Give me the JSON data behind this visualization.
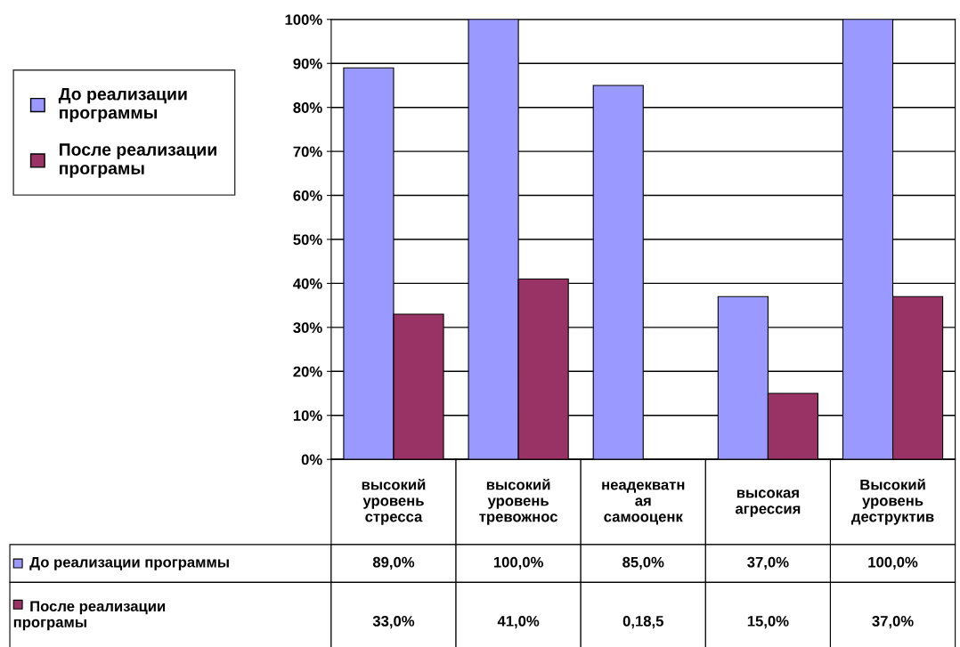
{
  "chart_data": {
    "type": "bar",
    "categories": [
      "высокий уровень стресса",
      "высокий уровень тревожнос",
      "неадекватн ая самооценк",
      "высокая агрессия",
      "Высокий уровень деструктив"
    ],
    "series": [
      {
        "name": "До реализации программы",
        "color": "#9999ff",
        "values": [
          89,
          100,
          85,
          37,
          100
        ],
        "value_labels": [
          "89,0%",
          "100,0%",
          "85,0%",
          "37,0%",
          "100,0%"
        ]
      },
      {
        "name": "После реализации програмы",
        "color": "#993366",
        "values": [
          33,
          41,
          null,
          15,
          37
        ],
        "value_labels": [
          "33,0%",
          "41,0%",
          "0,18,5",
          "15,0%",
          "37,0%"
        ]
      }
    ],
    "ylim": [
      0,
      100
    ],
    "yticks": [
      {
        "value": 0,
        "label": "0%"
      },
      {
        "value": 10,
        "label": "10%"
      },
      {
        "value": 20,
        "label": "20%"
      },
      {
        "value": 30,
        "label": "30%"
      },
      {
        "value": 40,
        "label": "40%"
      },
      {
        "value": 50,
        "label": "50%"
      },
      {
        "value": 60,
        "label": "60%"
      },
      {
        "value": 70,
        "label": "70%"
      },
      {
        "value": 80,
        "label": "80%"
      },
      {
        "value": 90,
        "label": "90%"
      },
      {
        "value": 100,
        "label": "100%"
      }
    ],
    "grid": "y",
    "legend": "left"
  }
}
